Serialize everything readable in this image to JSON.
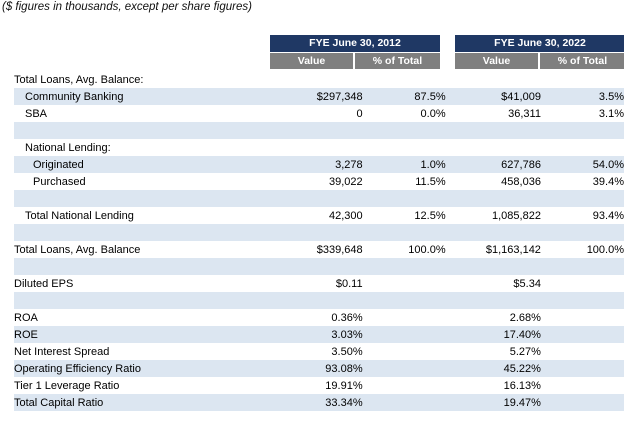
{
  "note": "($ figures in thousands, except per share figures)",
  "headers": {
    "period1": "FYE June 30, 2012",
    "period2": "FYE June 30, 2022",
    "value": "Value",
    "pct": "% of Total"
  },
  "rows": [
    {
      "label": "Total Loans, Avg. Balance:",
      "v1": "",
      "p1": "",
      "v2": "",
      "p2": ""
    },
    {
      "label": "Community Banking",
      "v1": "$297,348",
      "p1": "87.5%",
      "v2": "$41,009",
      "p2": "3.5%"
    },
    {
      "label": "SBA",
      "v1": "0",
      "p1": "0.0%",
      "v2": "36,311",
      "p2": "3.1%"
    },
    {
      "label": "",
      "v1": "",
      "p1": "",
      "v2": "",
      "p2": ""
    },
    {
      "label": "National Lending:",
      "v1": "",
      "p1": "",
      "v2": "",
      "p2": ""
    },
    {
      "label": "Originated",
      "v1": "3,278",
      "p1": "1.0%",
      "v2": "627,786",
      "p2": "54.0%"
    },
    {
      "label": "Purchased",
      "v1": "39,022",
      "p1": "11.5%",
      "v2": "458,036",
      "p2": "39.4%"
    },
    {
      "label": "",
      "v1": "",
      "p1": "",
      "v2": "",
      "p2": ""
    },
    {
      "label": "Total National Lending",
      "v1": "42,300",
      "p1": "12.5%",
      "v2": "1,085,822",
      "p2": "93.4%"
    },
    {
      "label": "",
      "v1": "",
      "p1": "",
      "v2": "",
      "p2": ""
    },
    {
      "label": "Total Loans, Avg. Balance",
      "v1": "$339,648",
      "p1": "100.0%",
      "v2": "$1,163,142",
      "p2": "100.0%"
    },
    {
      "label": "",
      "v1": "",
      "p1": "",
      "v2": "",
      "p2": ""
    },
    {
      "label": "Diluted EPS",
      "v1": "$0.11",
      "p1": "",
      "v2": "$5.34",
      "p2": ""
    },
    {
      "label": "",
      "v1": "",
      "p1": "",
      "v2": "",
      "p2": ""
    },
    {
      "label": "ROA",
      "v1": "0.36%",
      "p1": "",
      "v2": "2.68%",
      "p2": ""
    },
    {
      "label": "ROE",
      "v1": "3.03%",
      "p1": "",
      "v2": "17.40%",
      "p2": ""
    },
    {
      "label": "Net Interest Spread",
      "v1": "3.50%",
      "p1": "",
      "v2": "5.27%",
      "p2": ""
    },
    {
      "label": "Operating Efficiency Ratio",
      "v1": "93.08%",
      "p1": "",
      "v2": "45.22%",
      "p2": ""
    },
    {
      "label": "Tier 1 Leverage Ratio",
      "v1": "19.91%",
      "p1": "",
      "v2": "16.13%",
      "p2": ""
    },
    {
      "label": "Total Capital Ratio",
      "v1": "33.34%",
      "p1": "",
      "v2": "19.47%",
      "p2": ""
    }
  ],
  "colors": {
    "header_navy": "#1f3864",
    "header_gray": "#7f7f7f",
    "band": "#dce6f1"
  }
}
